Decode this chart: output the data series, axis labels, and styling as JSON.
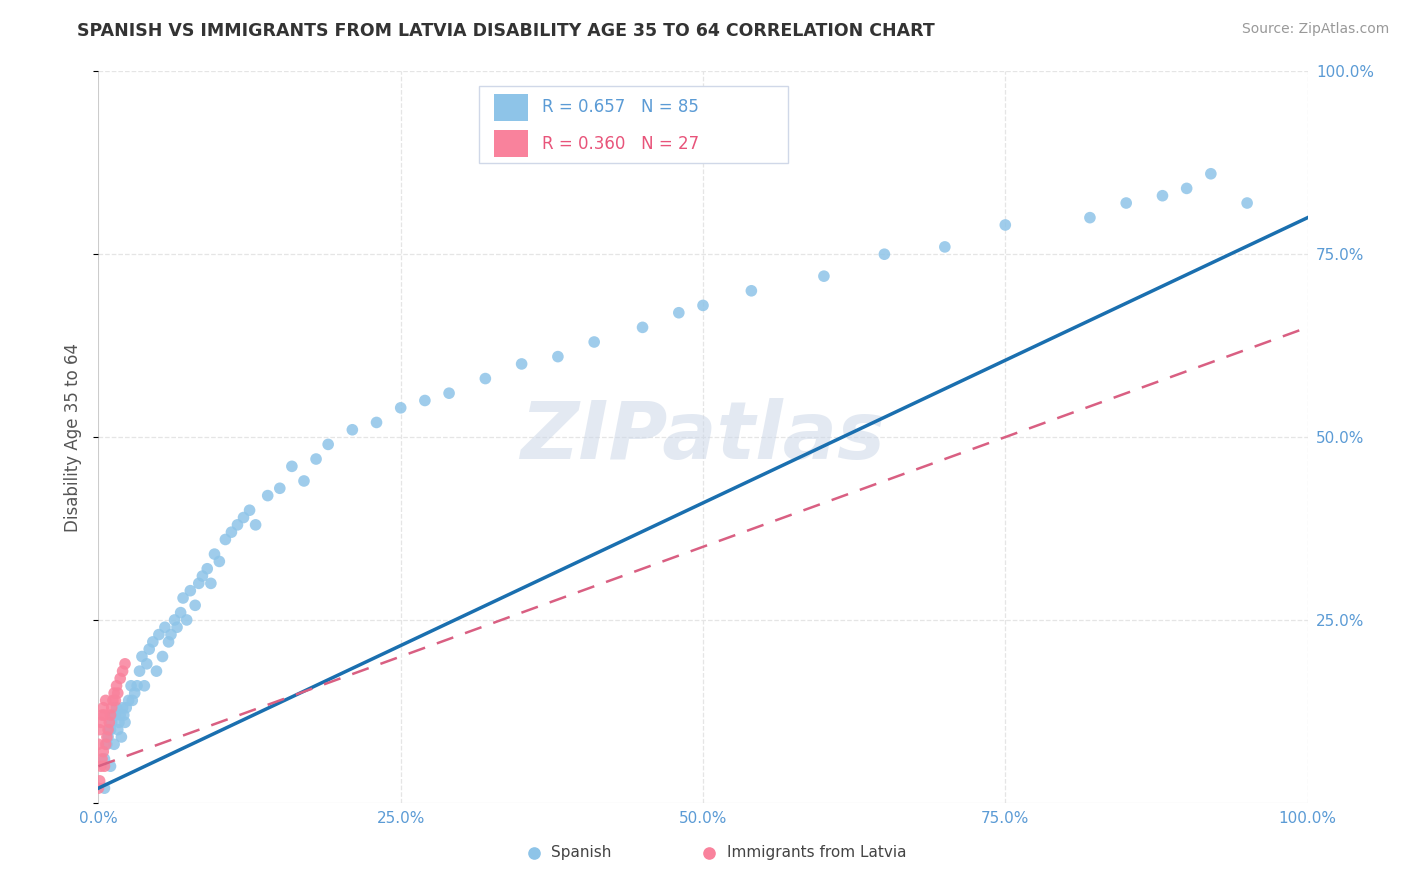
{
  "title": "SPANISH VS IMMIGRANTS FROM LATVIA DISABILITY AGE 35 TO 64 CORRELATION CHART",
  "source": "Source: ZipAtlas.com",
  "ylabel": "Disability Age 35 to 64",
  "xlim": [
    0.0,
    1.0
  ],
  "ylim": [
    0.0,
    1.0
  ],
  "R_spanish": 0.657,
  "N_spanish": 85,
  "R_latvia": 0.36,
  "N_latvia": 27,
  "blue_scatter": "#8ec4e8",
  "pink_scatter": "#f9829c",
  "blue_line": "#1a6faf",
  "pink_line": "#d95f82",
  "tick_color": "#5b9bd5",
  "watermark_color": "#cdd8e8",
  "grid_color": "#e5e5e5",
  "legend_box_color": "#f0f4fa",
  "legend_R_blue": "#5b9bd5",
  "legend_R_pink": "#e8547a",
  "title_color": "#333333",
  "source_color": "#999999",
  "ylabel_color": "#555555",
  "bottom_label_color": "#444444",
  "spanish_x": [
    0.005,
    0.005,
    0.007,
    0.008,
    0.009,
    0.01,
    0.01,
    0.011,
    0.012,
    0.013,
    0.014,
    0.015,
    0.016,
    0.017,
    0.018,
    0.019,
    0.02,
    0.021,
    0.022,
    0.023,
    0.025,
    0.027,
    0.028,
    0.03,
    0.032,
    0.034,
    0.036,
    0.038,
    0.04,
    0.042,
    0.045,
    0.048,
    0.05,
    0.053,
    0.055,
    0.058,
    0.06,
    0.063,
    0.065,
    0.068,
    0.07,
    0.073,
    0.076,
    0.08,
    0.083,
    0.086,
    0.09,
    0.093,
    0.096,
    0.1,
    0.105,
    0.11,
    0.115,
    0.12,
    0.125,
    0.13,
    0.14,
    0.15,
    0.16,
    0.17,
    0.18,
    0.19,
    0.21,
    0.23,
    0.25,
    0.27,
    0.29,
    0.32,
    0.35,
    0.38,
    0.41,
    0.45,
    0.48,
    0.5,
    0.54,
    0.6,
    0.65,
    0.7,
    0.75,
    0.82,
    0.85,
    0.88,
    0.9,
    0.92,
    0.95
  ],
  "spanish_y": [
    0.02,
    0.06,
    0.08,
    0.09,
    0.1,
    0.05,
    0.1,
    0.11,
    0.12,
    0.08,
    0.12,
    0.13,
    0.1,
    0.11,
    0.12,
    0.09,
    0.13,
    0.12,
    0.11,
    0.13,
    0.14,
    0.16,
    0.14,
    0.15,
    0.16,
    0.18,
    0.2,
    0.16,
    0.19,
    0.21,
    0.22,
    0.18,
    0.23,
    0.2,
    0.24,
    0.22,
    0.23,
    0.25,
    0.24,
    0.26,
    0.28,
    0.25,
    0.29,
    0.27,
    0.3,
    0.31,
    0.32,
    0.3,
    0.34,
    0.33,
    0.36,
    0.37,
    0.38,
    0.39,
    0.4,
    0.38,
    0.42,
    0.43,
    0.46,
    0.44,
    0.47,
    0.49,
    0.51,
    0.52,
    0.54,
    0.55,
    0.56,
    0.58,
    0.6,
    0.61,
    0.63,
    0.65,
    0.67,
    0.68,
    0.7,
    0.72,
    0.75,
    0.76,
    0.79,
    0.8,
    0.82,
    0.83,
    0.84,
    0.86,
    0.82
  ],
  "latvia_x": [
    0.0,
    0.0,
    0.001,
    0.001,
    0.002,
    0.002,
    0.003,
    0.003,
    0.004,
    0.004,
    0.005,
    0.005,
    0.006,
    0.006,
    0.007,
    0.008,
    0.009,
    0.01,
    0.011,
    0.012,
    0.013,
    0.014,
    0.015,
    0.016,
    0.018,
    0.02,
    0.022
  ],
  "latvia_y": [
    0.02,
    0.08,
    0.03,
    0.1,
    0.05,
    0.11,
    0.06,
    0.12,
    0.07,
    0.13,
    0.05,
    0.12,
    0.08,
    0.14,
    0.09,
    0.1,
    0.11,
    0.12,
    0.13,
    0.14,
    0.15,
    0.14,
    0.16,
    0.15,
    0.17,
    0.18,
    0.19
  ],
  "blue_line_x0": 0.0,
  "blue_line_y0": 0.02,
  "blue_line_x1": 1.0,
  "blue_line_y1": 0.8,
  "pink_line_x0": 0.0,
  "pink_line_y0": 0.05,
  "pink_line_x1": 1.0,
  "pink_line_y1": 0.65
}
